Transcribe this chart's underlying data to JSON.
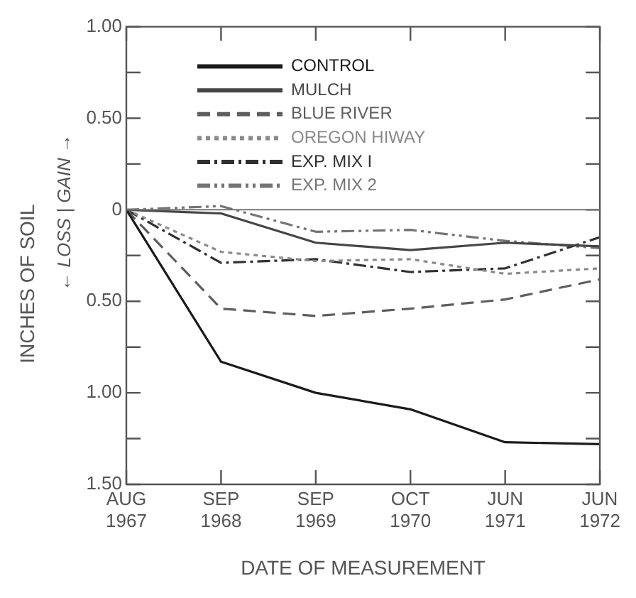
{
  "chart_data": {
    "type": "line",
    "xlabel": "DATE OF MEASUREMENT",
    "ylabel": "INCHES OF SOIL",
    "annotations": [
      "← LOSS | GAIN →"
    ],
    "categories": [
      "AUG 1967",
      "SEP 1968",
      "SEP 1969",
      "OCT 1970",
      "JUN 1971",
      "JUN 1972"
    ],
    "ylim": [
      -1.5,
      1.0
    ],
    "yticks": [
      {
        "value": 1.0,
        "label": "1.00"
      },
      {
        "value": 0.75,
        "label": null
      },
      {
        "value": 0.5,
        "label": "0.50"
      },
      {
        "value": 0.25,
        "label": null
      },
      0,
      {
        "value": -0.25,
        "label": null
      },
      {
        "value": -0.5,
        "label": "0.50"
      },
      {
        "value": -0.75,
        "label": null
      },
      {
        "value": -1.0,
        "label": "1.00"
      },
      {
        "value": -1.25,
        "label": null
      },
      {
        "value": -1.5,
        "label": "1.50"
      }
    ],
    "ref_lines": [
      {
        "axis": "y",
        "value": 0,
        "color": "#777777"
      }
    ],
    "grid": false,
    "legend": "top left",
    "marker": "none",
    "series": [
      {
        "name": "CONTROL",
        "color": "#1a1a1a",
        "line_style": "solid",
        "values": [
          0,
          -0.83,
          -1.0,
          -1.09,
          -1.27,
          -1.28
        ]
      },
      {
        "name": "MULCH",
        "color": "#464646",
        "line_style": "solid",
        "values": [
          0,
          -0.02,
          -0.18,
          -0.22,
          -0.18,
          -0.2
        ]
      },
      {
        "name": "BLUE RIVER",
        "color": "#5e5e5e",
        "line_style": "dashed",
        "values": [
          0,
          -0.54,
          -0.58,
          -0.54,
          -0.49,
          -0.38
        ]
      },
      {
        "name": "OREGON HIWAY",
        "color": "#8a8a8a",
        "line_style": "dotted",
        "values": [
          0,
          -0.23,
          -0.28,
          -0.27,
          -0.35,
          -0.32
        ]
      },
      {
        "name": "EXP. MIX I",
        "color": "#303030",
        "line_style": "dashdot",
        "values": [
          0,
          -0.29,
          -0.27,
          -0.34,
          -0.32,
          -0.15
        ]
      },
      {
        "name": "EXP. MIX 2",
        "color": "#747474",
        "line_style": "dashdotdot",
        "values": [
          0,
          0.02,
          -0.12,
          -0.11,
          -0.17,
          -0.21
        ]
      }
    ]
  }
}
